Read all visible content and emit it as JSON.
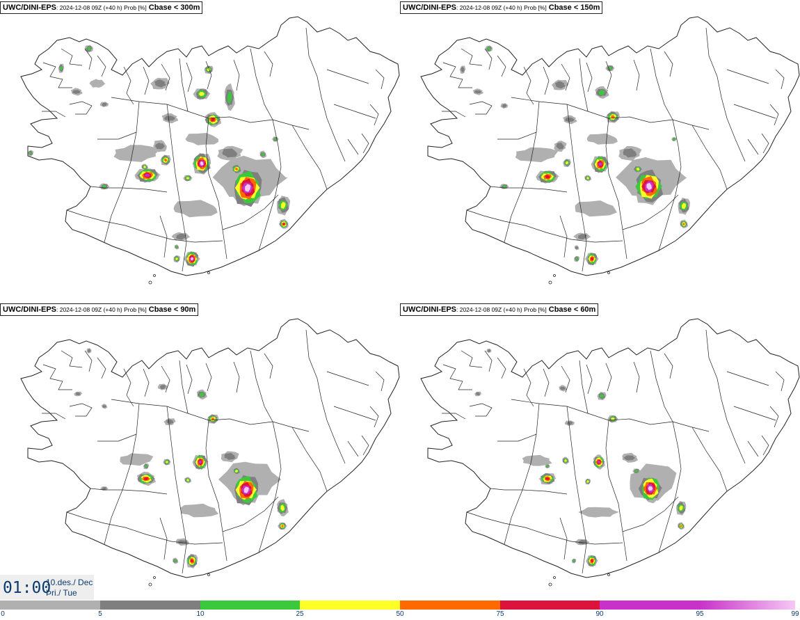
{
  "panels": [
    {
      "model": "UWC/DINI-EPS",
      "meta": ": 2024-12-08 09Z (+40 h) Prob [%]",
      "variable": "Cbase < 300m"
    },
    {
      "model": "UWC/DINI-EPS",
      "meta": ": 2024-12-08 09Z (+40 h) Prob [%]",
      "variable": "Cbase < 150m"
    },
    {
      "model": "UWC/DINI-EPS",
      "meta": ": 2024-12-08 09Z (+40 h) Prob [%]",
      "variable": "Cbase < 90m"
    },
    {
      "model": "UWC/DINI-EPS",
      "meta": ": 2024-12-08 09Z (+40 h) Prob [%]",
      "variable": "Cbase < 60m"
    }
  ],
  "valid_time": {
    "time": "01:00",
    "date": "10.des./ Dec",
    "weekday": "Þri./ Tue"
  },
  "legend": {
    "ticks": [
      "0",
      "5",
      "10",
      "25",
      "50",
      "75",
      "90",
      "95",
      "99"
    ],
    "colors": [
      "#ffffff",
      "#b0b0b0",
      "#7f7f7f",
      "#3cc83c",
      "#ffff28",
      "#ff6a00",
      "#dc143c",
      "#c832c8",
      "#f5c8f5"
    ]
  },
  "colors": {
    "coast": "#222222",
    "text_blue": "#0b3a6e"
  }
}
